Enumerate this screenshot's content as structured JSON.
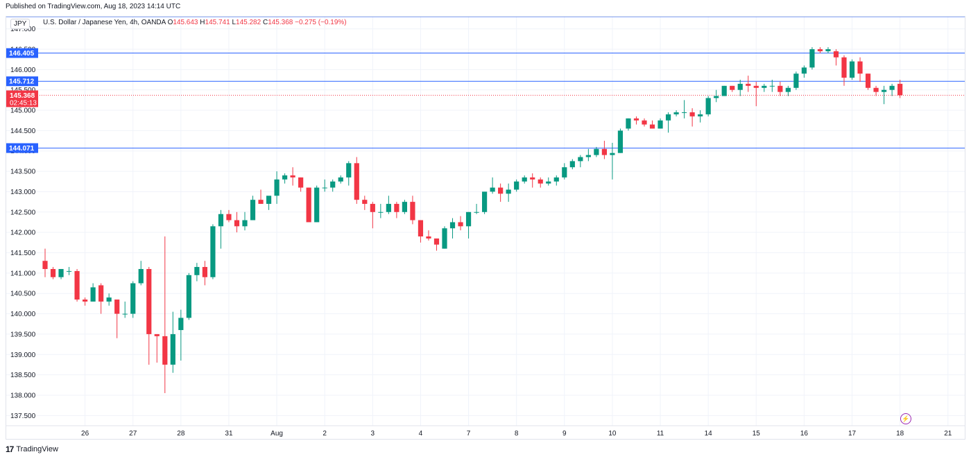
{
  "header": {
    "published": "Published on TradingView.com, Aug 18, 2023 14:14 UTC"
  },
  "legend": {
    "currency": "JPY",
    "symbol": "U.S. Dollar / Japanese Yen, 4h, OANDA",
    "o_label": "O",
    "o_value": "145.643",
    "h_label": "H",
    "h_value": "145.741",
    "l_label": "L",
    "l_value": "145.282",
    "c_label": "C",
    "c_value": "145.368",
    "change": "−0.275 (−0.19%)"
  },
  "footer": {
    "logo_text": "TradingView",
    "logo_icon": "tradingview-logo-icon"
  },
  "colors": {
    "up": "#089981",
    "down": "#f23645",
    "hline": "#2962ff",
    "price_label_bg": "#f23645",
    "grid": "#f0f3fa",
    "axis_text": "#131722"
  },
  "chart_data": {
    "type": "candlestick",
    "title": "U.S. Dollar / Japanese Yen, 4h, OANDA",
    "ylim": [
      137.25,
      147.3
    ],
    "y_ticks": [
      "137.500",
      "138.000",
      "138.500",
      "139.000",
      "139.500",
      "140.000",
      "140.500",
      "141.000",
      "141.500",
      "142.000",
      "142.500",
      "143.000",
      "143.500",
      "144.000",
      "144.500",
      "145.000",
      "145.500",
      "146.000",
      "146.500",
      "147.000"
    ],
    "x_ticks": [
      {
        "label": "26",
        "bar": 5
      },
      {
        "label": "27",
        "bar": 11
      },
      {
        "label": "28",
        "bar": 17
      },
      {
        "label": "31",
        "bar": 23
      },
      {
        "label": "Aug",
        "bar": 29
      },
      {
        "label": "2",
        "bar": 35
      },
      {
        "label": "3",
        "bar": 41
      },
      {
        "label": "4",
        "bar": 47
      },
      {
        "label": "7",
        "bar": 53
      },
      {
        "label": "8",
        "bar": 59
      },
      {
        "label": "9",
        "bar": 65
      },
      {
        "label": "10",
        "bar": 71
      },
      {
        "label": "11",
        "bar": 77
      },
      {
        "label": "14",
        "bar": 83
      },
      {
        "label": "15",
        "bar": 89
      },
      {
        "label": "16",
        "bar": 95
      },
      {
        "label": "17",
        "bar": 101
      },
      {
        "label": "18",
        "bar": 107
      },
      {
        "label": "21",
        "bar": 113
      }
    ],
    "horizontal_lines": [
      {
        "label": "146.405",
        "value": 146.405
      },
      {
        "label": "145.712",
        "value": 145.712
      },
      {
        "label": "144.071",
        "value": 144.071
      },
      {
        "label": "",
        "value": 147.3
      }
    ],
    "current_price": {
      "label": "145.368",
      "value": 145.368,
      "countdown": "02:45:13"
    },
    "candles": [
      [
        141.3,
        141.6,
        140.9,
        141.1
      ],
      [
        141.1,
        141.15,
        140.85,
        140.9
      ],
      [
        140.9,
        141.1,
        140.85,
        141.1
      ],
      [
        141.05,
        141.15,
        140.95,
        141.05
      ],
      [
        141.05,
        141.1,
        140.3,
        140.35
      ],
      [
        140.35,
        140.4,
        140.2,
        140.3
      ],
      [
        140.3,
        140.75,
        140.3,
        140.65
      ],
      [
        140.7,
        140.75,
        140.0,
        140.3
      ],
      [
        140.3,
        140.5,
        140.2,
        140.4
      ],
      [
        140.35,
        140.35,
        139.4,
        140.0
      ],
      [
        140.0,
        140.3,
        139.9,
        140.0
      ],
      [
        140.0,
        140.8,
        139.9,
        140.75
      ],
      [
        140.75,
        141.3,
        140.7,
        141.1
      ],
      [
        141.1,
        141.15,
        138.75,
        139.5
      ],
      [
        139.5,
        139.5,
        138.8,
        139.45
      ],
      [
        139.45,
        141.9,
        138.05,
        138.75
      ],
      [
        138.75,
        140.05,
        138.55,
        139.5
      ],
      [
        139.6,
        140.1,
        138.85,
        139.9
      ],
      [
        139.9,
        141.0,
        139.85,
        140.95
      ],
      [
        140.95,
        141.25,
        140.8,
        141.15
      ],
      [
        141.15,
        141.3,
        140.7,
        140.9
      ],
      [
        140.9,
        142.2,
        140.85,
        142.15
      ],
      [
        142.15,
        142.55,
        141.6,
        142.45
      ],
      [
        142.45,
        142.55,
        142.25,
        142.3
      ],
      [
        142.3,
        142.5,
        142.0,
        142.15
      ],
      [
        142.15,
        142.5,
        142.05,
        142.3
      ],
      [
        142.3,
        142.9,
        142.3,
        142.8
      ],
      [
        142.8,
        143.05,
        142.7,
        142.7
      ],
      [
        142.7,
        142.85,
        142.55,
        142.9
      ],
      [
        142.9,
        143.5,
        142.7,
        143.3
      ],
      [
        143.3,
        143.45,
        143.2,
        143.4
      ],
      [
        143.4,
        143.6,
        143.15,
        143.35
      ],
      [
        143.35,
        143.35,
        143.0,
        143.1
      ],
      [
        143.1,
        143.1,
        142.3,
        142.25
      ],
      [
        142.25,
        143.15,
        142.25,
        143.1
      ],
      [
        143.1,
        143.3,
        143.0,
        143.1
      ],
      [
        143.1,
        143.3,
        143.0,
        143.25
      ],
      [
        143.25,
        143.4,
        143.2,
        143.35
      ],
      [
        143.35,
        143.75,
        143.15,
        143.7
      ],
      [
        143.7,
        143.85,
        142.7,
        142.8
      ],
      [
        142.8,
        142.9,
        142.55,
        142.7
      ],
      [
        142.7,
        142.75,
        142.1,
        142.5
      ],
      [
        142.5,
        142.7,
        142.35,
        142.5
      ],
      [
        142.5,
        142.9,
        142.45,
        142.7
      ],
      [
        142.7,
        142.75,
        142.35,
        142.5
      ],
      [
        142.5,
        142.8,
        142.45,
        142.75
      ],
      [
        142.75,
        142.9,
        142.2,
        142.3
      ],
      [
        142.3,
        142.3,
        141.75,
        141.9
      ],
      [
        141.9,
        142.05,
        141.8,
        141.85
      ],
      [
        141.85,
        141.85,
        141.55,
        141.7
      ],
      [
        141.6,
        142.15,
        141.6,
        142.1
      ],
      [
        142.1,
        142.35,
        141.85,
        142.25
      ],
      [
        142.25,
        142.4,
        142.05,
        142.15
      ],
      [
        142.15,
        142.5,
        141.85,
        142.5
      ],
      [
        142.5,
        142.7,
        142.45,
        142.5
      ],
      [
        142.5,
        143.0,
        142.45,
        143.0
      ],
      [
        143.0,
        143.35,
        142.95,
        143.1
      ],
      [
        143.1,
        143.2,
        142.75,
        142.95
      ],
      [
        142.95,
        143.2,
        142.75,
        143.05
      ],
      [
        143.05,
        143.3,
        143.0,
        143.25
      ],
      [
        143.25,
        143.4,
        143.2,
        143.35
      ],
      [
        143.35,
        143.45,
        143.1,
        143.3
      ],
      [
        143.3,
        143.35,
        143.1,
        143.2
      ],
      [
        143.2,
        143.35,
        143.15,
        143.25
      ],
      [
        143.25,
        143.4,
        143.15,
        143.35
      ],
      [
        143.35,
        143.7,
        143.3,
        143.6
      ],
      [
        143.6,
        143.8,
        143.55,
        143.75
      ],
      [
        143.75,
        143.9,
        143.6,
        143.85
      ],
      [
        143.85,
        144.05,
        143.75,
        143.9
      ],
      [
        143.9,
        144.1,
        143.85,
        144.05
      ],
      [
        144.05,
        144.25,
        143.8,
        143.9
      ],
      [
        143.9,
        144.2,
        143.3,
        143.95
      ],
      [
        143.95,
        144.55,
        143.95,
        144.5
      ],
      [
        144.55,
        144.8,
        144.5,
        144.8
      ],
      [
        144.8,
        144.85,
        144.65,
        144.75
      ],
      [
        144.75,
        144.8,
        144.6,
        144.65
      ],
      [
        144.65,
        144.75,
        144.55,
        144.55
      ],
      [
        144.55,
        144.8,
        144.55,
        144.75
      ],
      [
        144.75,
        144.95,
        144.45,
        144.9
      ],
      [
        144.9,
        145.0,
        144.85,
        144.95
      ],
      [
        144.95,
        145.25,
        144.8,
        144.95
      ],
      [
        144.95,
        145.05,
        144.6,
        144.85
      ],
      [
        144.85,
        145.0,
        144.7,
        144.9
      ],
      [
        144.9,
        145.35,
        144.85,
        145.3
      ],
      [
        145.3,
        145.5,
        145.2,
        145.35
      ],
      [
        145.35,
        145.6,
        145.35,
        145.6
      ],
      [
        145.6,
        145.6,
        145.45,
        145.5
      ],
      [
        145.5,
        145.75,
        145.35,
        145.65
      ],
      [
        145.65,
        145.85,
        145.45,
        145.6
      ],
      [
        145.6,
        145.7,
        145.1,
        145.55
      ],
      [
        145.55,
        145.65,
        145.45,
        145.6
      ],
      [
        145.6,
        145.75,
        145.45,
        145.6
      ],
      [
        145.6,
        145.7,
        145.35,
        145.45
      ],
      [
        145.45,
        145.6,
        145.35,
        145.55
      ],
      [
        145.55,
        145.95,
        145.5,
        145.9
      ],
      [
        145.9,
        146.1,
        145.8,
        146.05
      ],
      [
        146.05,
        146.55,
        146.0,
        146.5
      ],
      [
        146.5,
        146.55,
        146.4,
        146.45
      ],
      [
        146.45,
        146.55,
        146.4,
        146.5
      ],
      [
        146.45,
        146.5,
        146.1,
        146.3
      ],
      [
        146.3,
        146.35,
        145.6,
        145.8
      ],
      [
        145.8,
        146.25,
        145.75,
        146.2
      ],
      [
        146.2,
        146.3,
        145.7,
        145.9
      ],
      [
        145.9,
        145.9,
        145.5,
        145.55
      ],
      [
        145.55,
        145.6,
        145.35,
        145.45
      ],
      [
        145.45,
        145.6,
        145.15,
        145.5
      ],
      [
        145.5,
        145.65,
        145.35,
        145.6
      ],
      [
        145.65,
        145.75,
        145.3,
        145.37
      ]
    ]
  }
}
